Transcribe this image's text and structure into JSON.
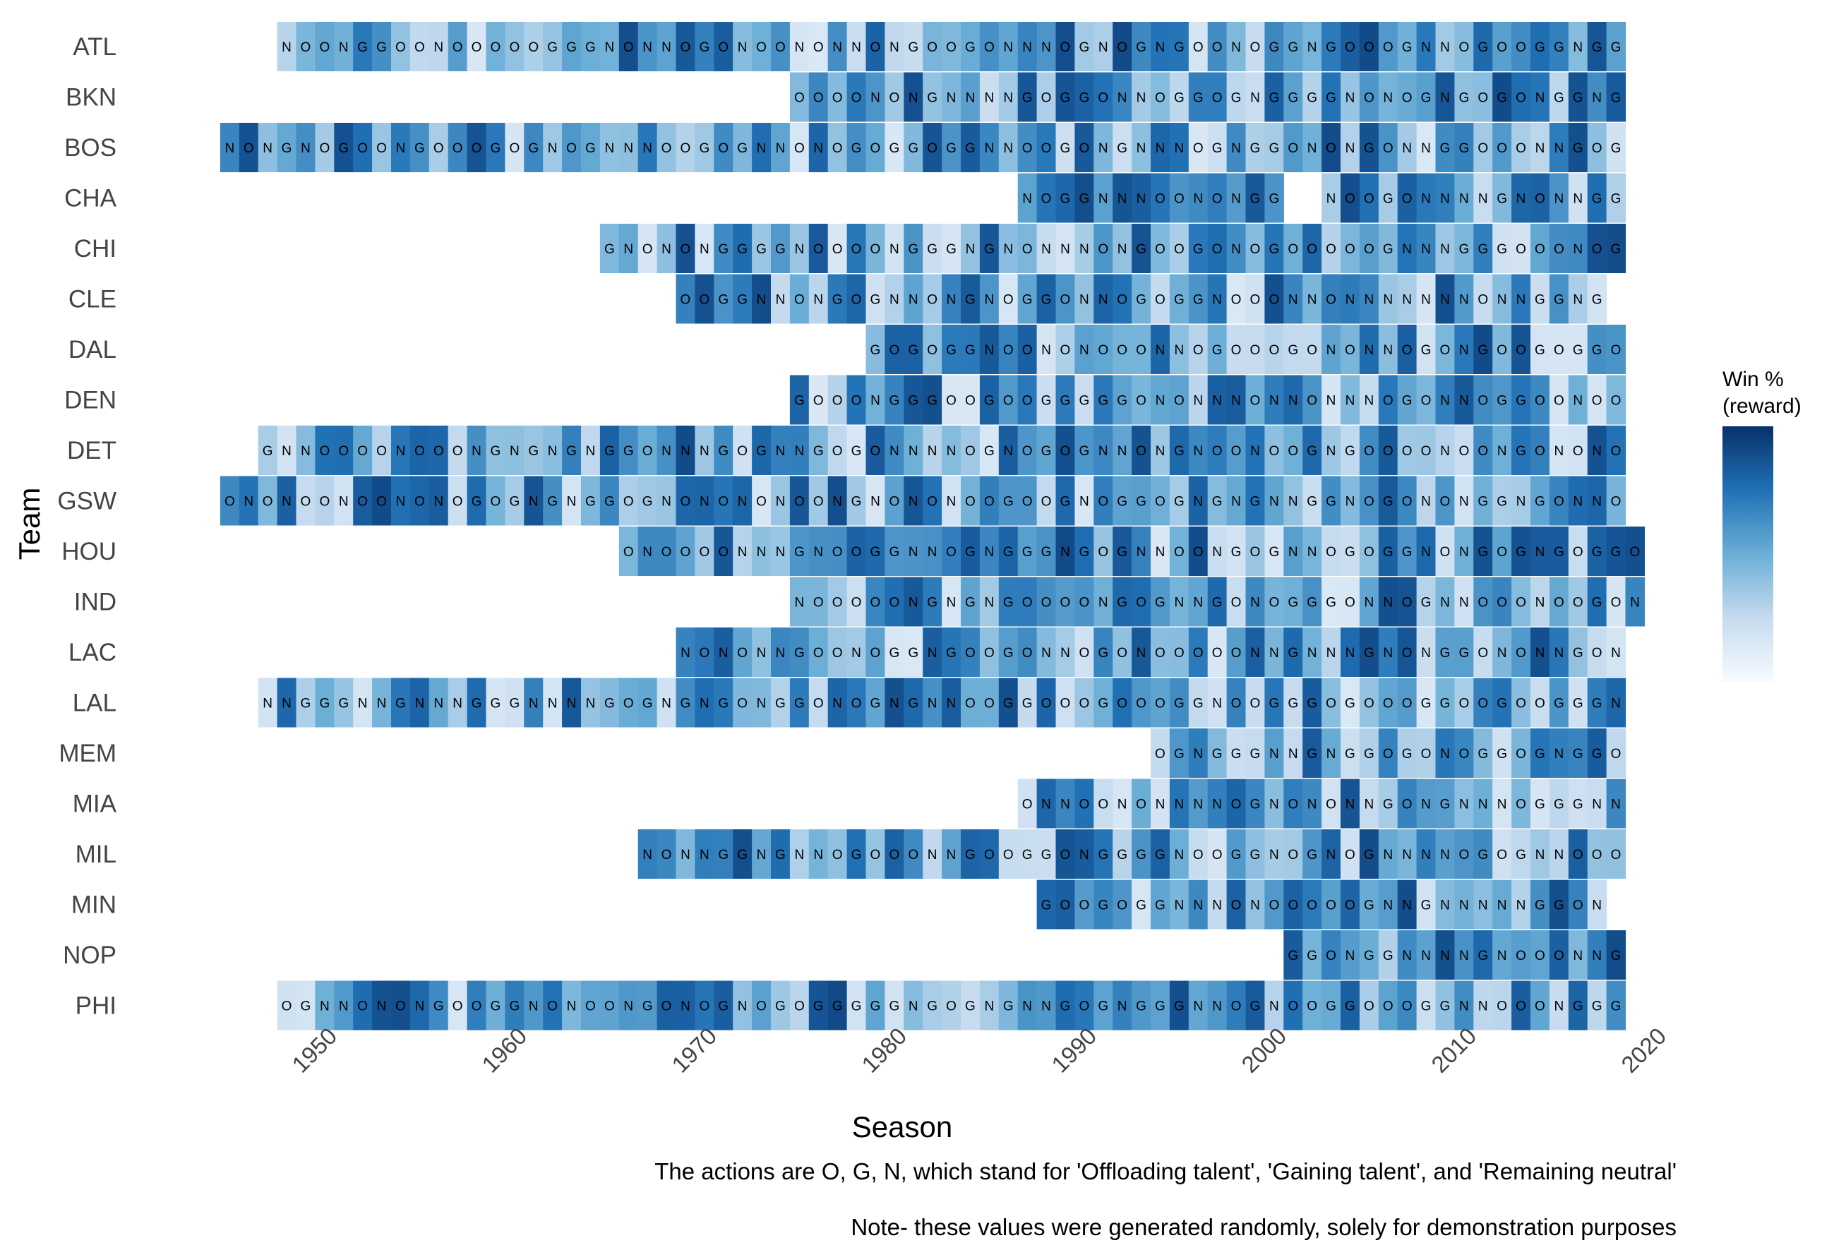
{
  "chart_data": {
    "type": "heatmap",
    "xlabel": "Season",
    "ylabel": "Team",
    "x_ticks": [
      1950,
      1960,
      1970,
      1980,
      1990,
      2000,
      2010,
      2020
    ],
    "x_range": [
      1944,
      2019
    ],
    "legend": {
      "title_line1": "Win %",
      "title_line2": "(reward)",
      "colors": [
        "#f7fbff",
        "#c6dbef",
        "#6baed6",
        "#2171b5",
        "#08306b"
      ]
    },
    "actions_caption": "The actions are O, G, N, which stand for 'Offloading talent', 'Gaining talent', and 'Remaining neutral'",
    "note_caption": "Note- these values were generated randomly, solely for demonstration purposes",
    "teams": [
      {
        "name": "ATL",
        "start": 1948,
        "actions": "NOONGGOONOOOOOGGGNONNOGONOONONNONGOOGONNNOGNOGNGOONOGGNGOOOGNNOGOOGGNGG"
      },
      {
        "name": "BKN",
        "start": 1975,
        "actions": "OOOONONGNNNNGOGGONNOGGOGNGGGGNONOGNGOGONGGNG"
      },
      {
        "name": "BOS",
        "start": 1945,
        "actions": "NONGNOGOONGOOOGOGNOGNNNOOGOGNNONOGOGGOGGNNOOGONGNNNOGNGGONONGONNGGOOONNGOG"
      },
      {
        "name": "CHA",
        "start": 1987,
        "actions": "NOGGNNNOONONGG  NOOGONNNNGNONNGG"
      },
      {
        "name": "CHI",
        "start": 1965,
        "actions": "GNONONGGGGNOOOONGGGNGNONNNONGOOGONOGOOOOOGNNNGGGOOONOG"
      },
      {
        "name": "CLE",
        "start": 1969,
        "actions": "OOGGNNONGOGNNONGNOGGONNOGOGGNOOONNONNNNNNNONNGGNG"
      },
      {
        "name": "DAL",
        "start": 1979,
        "actions": "GOGOGGNOONONOOONNOGOOOGONONNOGONGOOGOGGO"
      },
      {
        "name": "DEN",
        "start": 1975,
        "actions": "GOOONGGGOOGOOGGGGGONONNNONNONNNOGONNOGGOONOO"
      },
      {
        "name": "DET",
        "start": 1947,
        "actions": "GNNOOOONOOONGNGNGNGGONNNGOGNNGOGONNNNOGNOGOGNNONGNOONOOGNGOOOONOONGONONO"
      },
      {
        "name": "GSW",
        "start": 1945,
        "actions": "ONONOONOONONOGOGNGNGGOGNONONONOONGNONONOOGOOGNOGGOGNGNGNNGGNOGONONGGNGONNO"
      },
      {
        "name": "HOU",
        "start": 1966,
        "actions": "ONOOOONNNGNOOGGNNOGNGGGNGOGNNOONGOGNNOGOGGNONGOGNGOGGO"
      },
      {
        "name": "IND",
        "start": 1975,
        "actions": "NOOOOONGNGNGOOOONGOGNNGONOGGGONNOGNNOOONOOGON"
      },
      {
        "name": "LAC",
        "start": 1969,
        "actions": "NONONNGOONOGGNGOOGONNOGONOOOOONNGNNNGNONGGONONNGON"
      },
      {
        "name": "LAL",
        "start": 1947,
        "actions": "NNGGGNNGNNNGGGNNNNGOGNGNGONGGONOGNGNNOOGGOOOGOOOGGNOOGGGOGOOOGGOOGOOGGGN"
      },
      {
        "name": "MEM",
        "start": 1994,
        "actions": "OGNGGGNNGNGGOGONOGGOGNGGO"
      },
      {
        "name": "MIA",
        "start": 1987,
        "actions": "ONNOONONNNNOGNONONNGONGNNNOGGGNN"
      },
      {
        "name": "MIL",
        "start": 1967,
        "actions": "NONNGGNGNNOGOOONNGOOGGONGGGGNOOGGNOGNOGNNNNOGOGNNOOO"
      },
      {
        "name": "MIN",
        "start": 1988,
        "actions": "GOOGOGGNNNONOOOOOGNNGNNNNNGGON"
      },
      {
        "name": "NOP",
        "start": 2001,
        "actions": "GGONGGNNNNGNOOONNG"
      },
      {
        "name": "PHI",
        "start": 1948,
        "actions": "OGNNONONGOOGGNONOONGONOGNOGOGGGGGNGOGNGNNGOGNGGGNNOGNOOGGOOOGGNNOOONGGG"
      }
    ]
  }
}
